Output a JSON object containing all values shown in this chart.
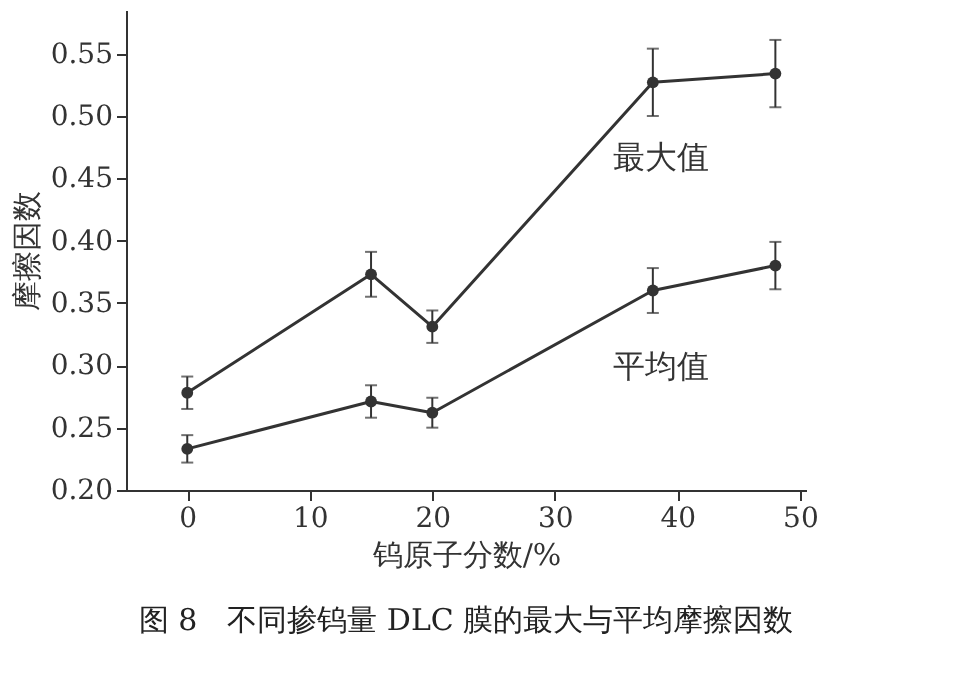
{
  "chart_data": {
    "type": "line",
    "xlabel": "钨原子分数/%",
    "ylabel": "摩擦因数",
    "x": [
      0,
      15,
      20,
      38,
      48
    ],
    "series": [
      {
        "name": "最大值",
        "color": "#333333",
        "values": [
          0.278,
          0.373,
          0.331,
          0.527,
          0.534
        ],
        "errors": [
          0.013,
          0.018,
          0.013,
          0.027,
          0.027
        ]
      },
      {
        "name": "平均值",
        "color": "#333333",
        "values": [
          0.233,
          0.271,
          0.262,
          0.36,
          0.38
        ],
        "errors": [
          0.011,
          0.013,
          0.012,
          0.018,
          0.019
        ]
      }
    ],
    "xlim": [
      -5,
      50.5
    ],
    "xticks": [
      0,
      10,
      20,
      30,
      40,
      50
    ],
    "ylim": [
      0.2,
      0.585
    ],
    "yticks": [
      {
        "value": 0.2,
        "label": "0.20"
      },
      {
        "value": 0.25,
        "label": "0.25"
      },
      {
        "value": 0.3,
        "label": "0.30"
      },
      {
        "value": 0.35,
        "label": "0.35"
      },
      {
        "value": 0.4,
        "label": "0.40"
      },
      {
        "value": 0.45,
        "label": "0.45"
      },
      {
        "value": 0.5,
        "label": "0.50"
      },
      {
        "value": 0.55,
        "label": "0.55"
      }
    ],
    "grid": false,
    "legend": false,
    "marker": "circle",
    "line_style": "solid",
    "annotations": [
      "图 8　不同掺钨量 DLC 膜的最大与平均摩擦因数"
    ]
  }
}
